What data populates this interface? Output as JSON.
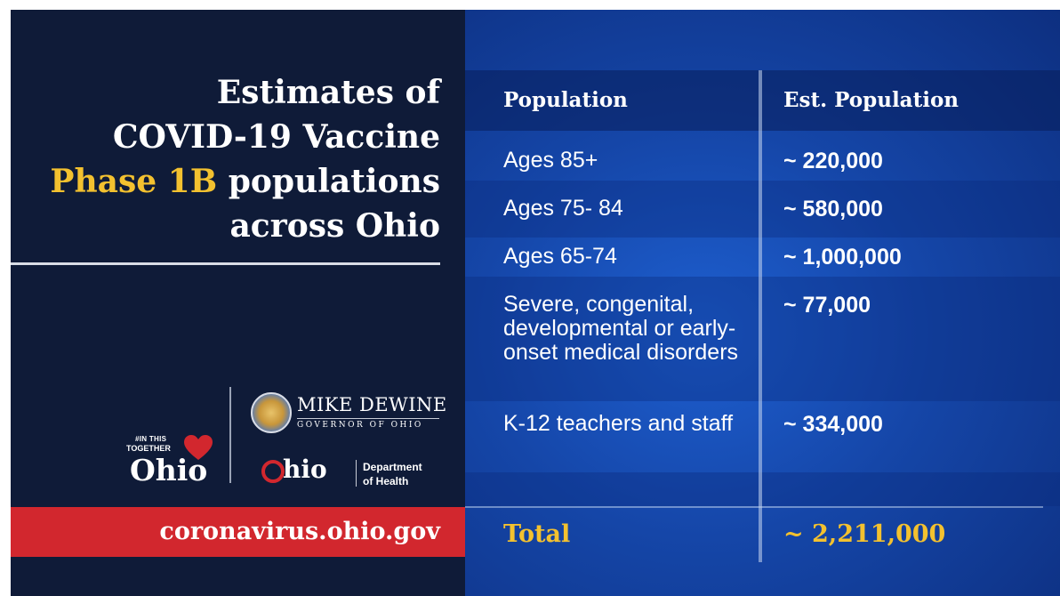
{
  "title": {
    "line1": "Estimates of",
    "line2": "COVID-19 Vaccine",
    "line3_highlight": "Phase 1B",
    "line3_rest": " populations",
    "line4": "across Ohio"
  },
  "logos": {
    "together_small": "#IN THIS",
    "together_small2": "TOGETHER",
    "together_ohio": "Ohio",
    "governor_name": "MIKE DEWINE",
    "governor_title": "GOVERNOR OF OHIO",
    "odh_ohio": "hio",
    "odh_dept_line1": "Department",
    "odh_dept_line2": "of Health"
  },
  "url": "coronavirus.ohio.gov",
  "table": {
    "headers": [
      "Population",
      "Est. Population"
    ],
    "rows": [
      {
        "population": "Ages 85+",
        "estimate": "~ 220,000"
      },
      {
        "population": "Ages 75- 84",
        "estimate": "~ 580,000"
      },
      {
        "population": "Ages 65-74",
        "estimate": "~ 1,000,000"
      },
      {
        "population": "Severe, congenital, developmental or early-onset medical disorders",
        "estimate": "~ 77,000"
      },
      {
        "population": "K-12 teachers and staff",
        "estimate": "~ 334,000"
      }
    ],
    "total_label": "Total",
    "total_value": "~ 2,211,000"
  },
  "colors": {
    "navy": "#0f1b38",
    "accent_yellow": "#f3c12f",
    "ohio_red": "#d2272e",
    "blue": "#1546a8"
  }
}
